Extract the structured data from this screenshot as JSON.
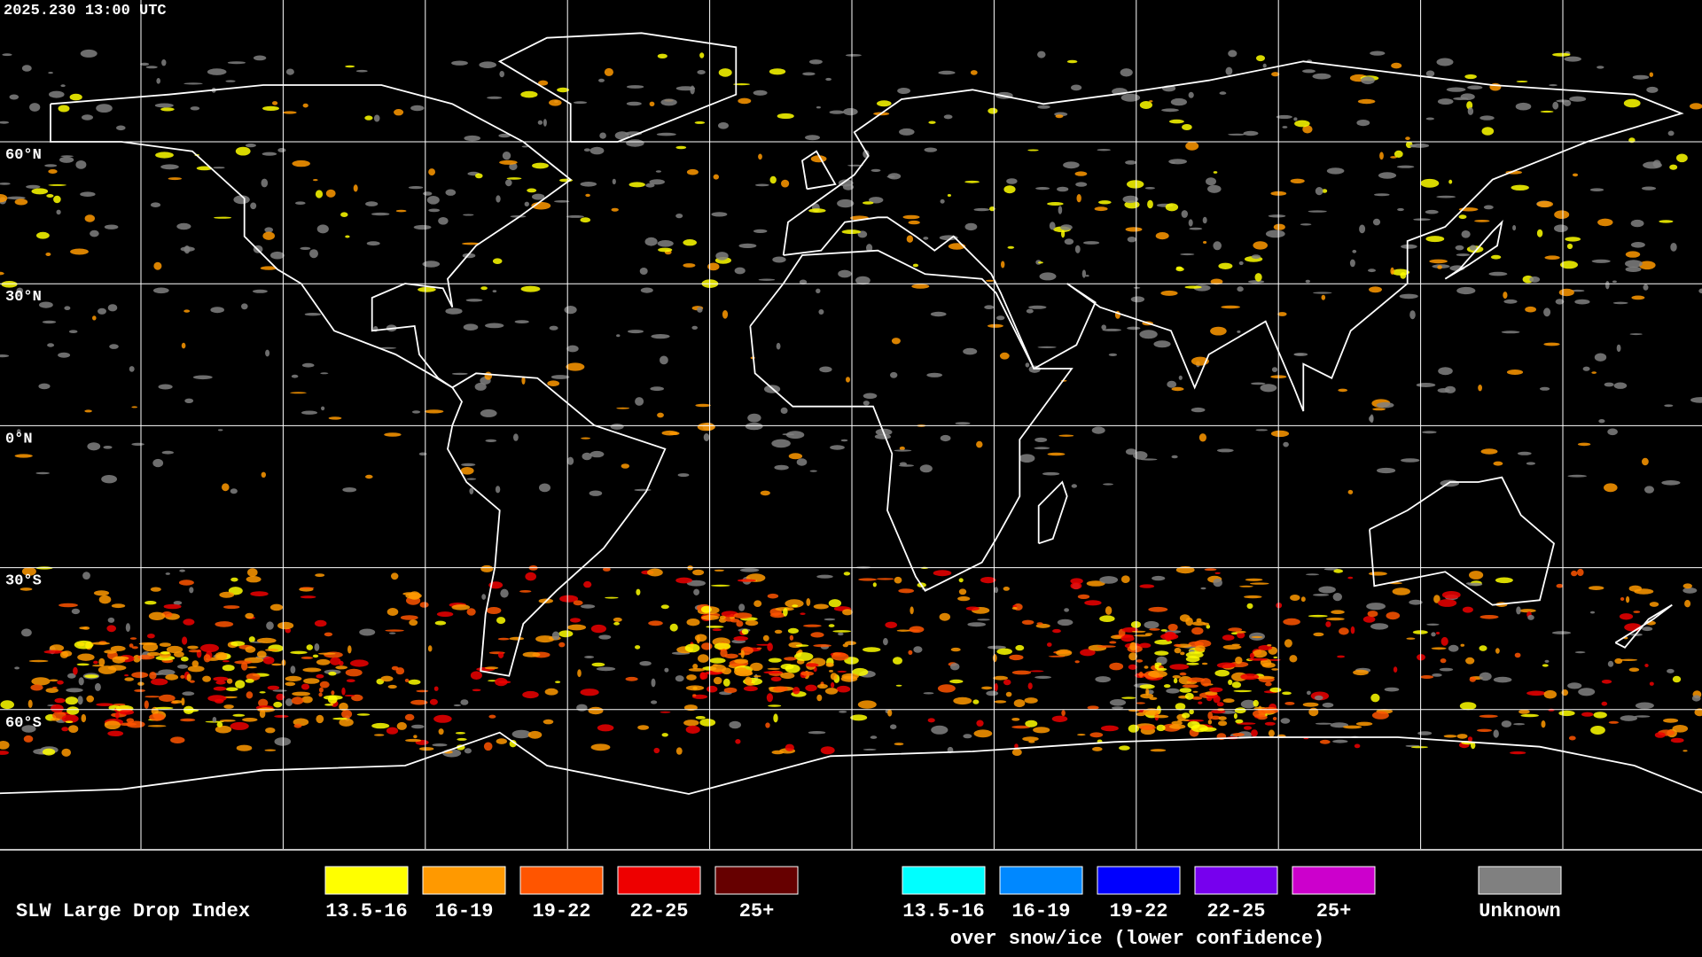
{
  "header": {
    "timestamp": "2025.230 13:00 UTC"
  },
  "map": {
    "latitude_labels": [
      "60°N",
      "30°N",
      "0°N",
      "30°S",
      "60°S"
    ]
  },
  "legend": {
    "title": "SLW Large Drop Index",
    "groups": [
      {
        "items": [
          {
            "label": "13.5-16",
            "color": "#ffff00"
          },
          {
            "label": "16-19",
            "color": "#ff9900"
          },
          {
            "label": "19-22",
            "color": "#ff5500"
          },
          {
            "label": "22-25",
            "color": "#ee0000"
          },
          {
            "label": "25+",
            "color": "#660000"
          }
        ]
      },
      {
        "items": [
          {
            "label": "13.5-16",
            "color": "#00ffff"
          },
          {
            "label": "16-19",
            "color": "#0088ff"
          },
          {
            "label": "19-22",
            "color": "#0000ff"
          },
          {
            "label": "22-25",
            "color": "#7700ee"
          },
          {
            "label": "25+",
            "color": "#cc00cc"
          }
        ],
        "caption": "over snow/ice (lower confidence)"
      },
      {
        "items": [
          {
            "label": "Unknown",
            "color": "#808080"
          }
        ]
      }
    ]
  }
}
